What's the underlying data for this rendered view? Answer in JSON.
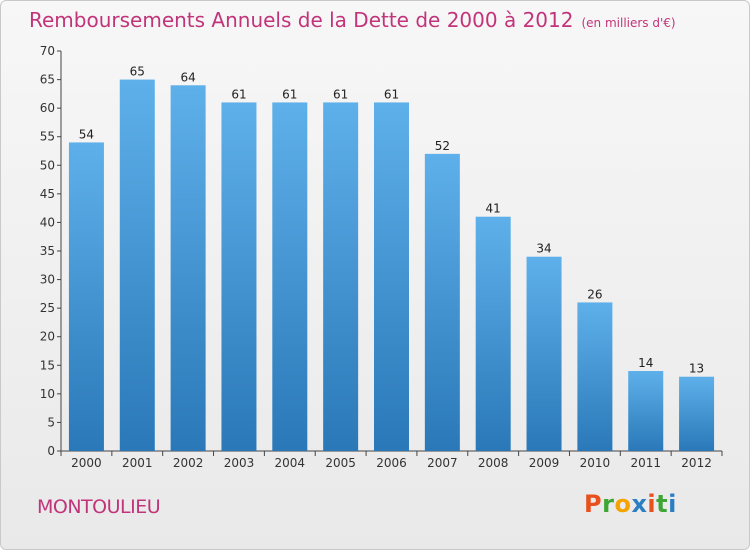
{
  "title": "Remboursements Annuels de la Dette de 2000 à 2012",
  "unit_note": "(en milliers d'€)",
  "commune": "MONTOULIEU",
  "logo_text": "Proxiti",
  "logo_colors": [
    "#e8501e",
    "#3fa535",
    "#f5a300",
    "#2a7fc3",
    "#e8501e",
    "#3fa535",
    "#2a7fc3"
  ],
  "colors": {
    "accent": "#c2347a",
    "bar_top": "#5eb0ea",
    "bar_bottom": "#2a78b8"
  },
  "chart_data": {
    "type": "bar",
    "categories": [
      "2000",
      "2001",
      "2002",
      "2003",
      "2004",
      "2005",
      "2006",
      "2007",
      "2008",
      "2009",
      "2010",
      "2011",
      "2012"
    ],
    "values": [
      54,
      65,
      64,
      61,
      61,
      61,
      61,
      52,
      41,
      34,
      26,
      14,
      13
    ],
    "ylim": [
      0,
      70
    ],
    "yticks": [
      0,
      5,
      10,
      15,
      20,
      25,
      30,
      35,
      40,
      45,
      50,
      55,
      60,
      65,
      70
    ],
    "grid": false,
    "data_labels": true
  }
}
